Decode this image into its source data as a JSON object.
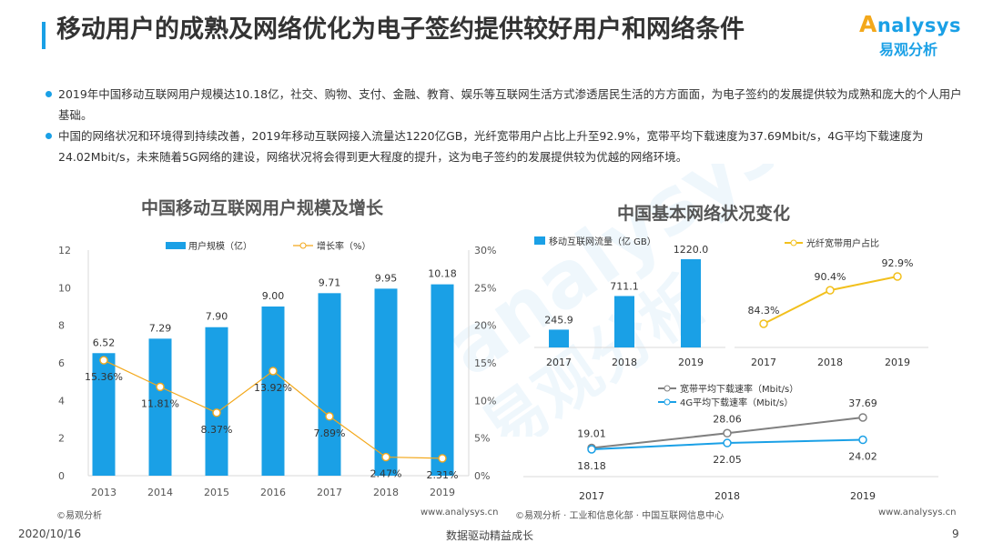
{
  "header": {
    "title": "移动用户的成熟及网络优化为电子签约提供较好用户和网络条件",
    "logo_en": "nalysys",
    "logo_en_initial": "A",
    "logo_cn": "易观分析"
  },
  "bullets": [
    "2019年中国移动互联网用户规模达10.18亿，社交、购物、支付、金融、教育、娱乐等互联网生活方式渗透居民生活的方方面面，为电子签约的发展提供较为成熟和庞大的个人用户基础。",
    "中国的网络状况和环境得到持续改善，2019年移动互联网接入流量达1220亿GB，光纤宽带用户占比上升至92.9%，宽带平均下载速度为37.69Mbit/s，4G平均下载速度为24.02Mbit/s，未来随着5G网络的建设，网络状况将会得到更大程度的提升，这为电子签约的发展提供较为优越的网络环境。"
  ],
  "watermark": {
    "en": "analysys",
    "cn": "易观分析"
  },
  "colors": {
    "accent": "#1aa0e6",
    "orange": "#f3a81b",
    "gray_line": "#808080",
    "gold": "#f2c01d"
  },
  "chart_data": [
    {
      "type": "bar",
      "title": "中国移动互联网用户规模及增长",
      "categories": [
        "2013",
        "2014",
        "2015",
        "2016",
        "2017",
        "2018",
        "2019"
      ],
      "series": [
        {
          "name": "用户规模（亿）",
          "type": "bar",
          "axis": "left",
          "values": [
            6.52,
            7.29,
            7.9,
            9.0,
            9.71,
            9.95,
            10.18
          ],
          "labels": [
            "6.52",
            "7.29",
            "7.90",
            "9.00",
            "9.71",
            "9.95",
            "10.18"
          ]
        },
        {
          "name": "增长率（%）",
          "type": "line",
          "axis": "right",
          "values": [
            15.36,
            11.81,
            8.37,
            13.92,
            7.89,
            2.47,
            2.31
          ],
          "labels": [
            "15.36%",
            "11.81%",
            "8.37%",
            "13.92%",
            "7.89%",
            "2.47%",
            "2.31%"
          ]
        }
      ],
      "ylim": [
        0,
        12
      ],
      "yticks": [
        "0",
        "2",
        "4",
        "6",
        "8",
        "10",
        "12"
      ],
      "y2lim": [
        0,
        30
      ],
      "y2ticks": [
        "0%",
        "5%",
        "10%",
        "15%",
        "20%",
        "25%",
        "30%"
      ],
      "grid": false,
      "legend": "top",
      "source": "©易观分析",
      "url": "www.analysys.cn"
    },
    {
      "type": "bar",
      "title": "中国基本网络状况变化",
      "categories": [
        "2017",
        "2018",
        "2019"
      ],
      "series": [
        {
          "name": "移动互联网流量（亿 GB）",
          "values": [
            245.9,
            711.1,
            1220.0
          ],
          "labels": [
            "245.9",
            "711.1",
            "1220.0"
          ]
        }
      ],
      "legend": "top-left"
    },
    {
      "type": "line",
      "categories": [
        "2017",
        "2018",
        "2019"
      ],
      "series": [
        {
          "name": "光纤宽带用户占比",
          "values": [
            84.3,
            90.4,
            92.9
          ],
          "labels": [
            "84.3%",
            "90.4%",
            "92.9%"
          ]
        }
      ],
      "legend": "top"
    },
    {
      "type": "line",
      "categories": [
        "2017",
        "2018",
        "2019"
      ],
      "series": [
        {
          "name": "宽带平均下载速率（Mbit/s）",
          "values": [
            19.01,
            28.06,
            37.69
          ],
          "labels": [
            "19.01",
            "28.06",
            "37.69"
          ]
        },
        {
          "name": "4G平均下载速率（Mbit/s）",
          "values": [
            18.18,
            22.05,
            24.02
          ],
          "labels": [
            "18.18",
            "22.05",
            "24.02"
          ]
        }
      ],
      "legend": "top-left",
      "source": "©易观分析 · 工业和信息化部 · 中国互联网信息中心",
      "url": "www.analysys.cn"
    }
  ],
  "footer": {
    "date": "2020/10/16",
    "slogan": "数据驱动精益成长",
    "page": "9"
  }
}
